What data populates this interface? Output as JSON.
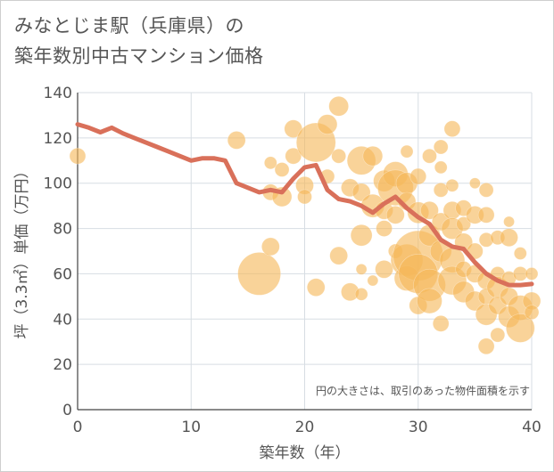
{
  "title_lines": [
    "みなとじま駅（兵庫県）の",
    "築年数別中古マンション価格"
  ],
  "chart_data": {
    "type": "scatter",
    "title": "みなとじま駅（兵庫県）の築年数別中古マンション価格",
    "xlabel": "築年数（年）",
    "ylabel": "坪（3.3㎡）単価（万円）",
    "xlim": [
      0,
      40
    ],
    "ylim": [
      0,
      140
    ],
    "x_ticks": [
      0,
      10,
      20,
      30,
      40
    ],
    "y_ticks": [
      0,
      20,
      40,
      60,
      80,
      100,
      120,
      140
    ],
    "grid": true,
    "note": "円の大きさは、取引のあった物件面積を示す",
    "colors": {
      "bubble": "#F5B85A",
      "line": "#D9705A",
      "grid": "#d7dde3",
      "text": "#555555"
    },
    "line": {
      "x": [
        0,
        1,
        2,
        3,
        4,
        5,
        6,
        7,
        8,
        9,
        10,
        11,
        12,
        13,
        14,
        15,
        16,
        17,
        18,
        19,
        20,
        21,
        22,
        23,
        24,
        25,
        26,
        27,
        28,
        29,
        30,
        31,
        32,
        33,
        34,
        35,
        36,
        37,
        38,
        39,
        40
      ],
      "y": [
        126,
        124.5,
        122.5,
        124.5,
        122,
        120,
        118,
        116,
        114,
        112,
        110,
        111,
        111,
        110,
        100,
        98,
        96,
        97,
        96,
        102,
        107,
        108,
        97,
        93,
        92,
        90,
        87,
        91,
        94,
        89,
        85,
        82,
        75,
        72,
        71,
        65,
        60,
        57,
        55,
        55,
        55.5
      ]
    },
    "points": [
      {
        "x": 0,
        "y": 112,
        "s": 9
      },
      {
        "x": 14,
        "y": 119,
        "s": 10
      },
      {
        "x": 16,
        "y": 60,
        "s": 24
      },
      {
        "x": 17,
        "y": 109,
        "s": 7
      },
      {
        "x": 17,
        "y": 96,
        "s": 9
      },
      {
        "x": 17,
        "y": 72,
        "s": 10
      },
      {
        "x": 18,
        "y": 106,
        "s": 8
      },
      {
        "x": 18,
        "y": 94,
        "s": 11
      },
      {
        "x": 19,
        "y": 124,
        "s": 10
      },
      {
        "x": 19,
        "y": 112,
        "s": 9
      },
      {
        "x": 20,
        "y": 99,
        "s": 10
      },
      {
        "x": 20,
        "y": 94,
        "s": 8
      },
      {
        "x": 21,
        "y": 118,
        "s": 22
      },
      {
        "x": 21,
        "y": 54,
        "s": 10
      },
      {
        "x": 22,
        "y": 126,
        "s": 11
      },
      {
        "x": 22,
        "y": 103,
        "s": 8
      },
      {
        "x": 23,
        "y": 134,
        "s": 11
      },
      {
        "x": 23,
        "y": 112,
        "s": 8
      },
      {
        "x": 23,
        "y": 68,
        "s": 10
      },
      {
        "x": 24,
        "y": 98,
        "s": 10
      },
      {
        "x": 24,
        "y": 52,
        "s": 10
      },
      {
        "x": 25,
        "y": 110,
        "s": 16
      },
      {
        "x": 25,
        "y": 96,
        "s": 10
      },
      {
        "x": 25,
        "y": 77,
        "s": 12
      },
      {
        "x": 25,
        "y": 62,
        "s": 6
      },
      {
        "x": 25,
        "y": 51,
        "s": 7
      },
      {
        "x": 26,
        "y": 112,
        "s": 11
      },
      {
        "x": 26,
        "y": 90,
        "s": 13
      },
      {
        "x": 26,
        "y": 57,
        "s": 6
      },
      {
        "x": 27,
        "y": 101,
        "s": 12
      },
      {
        "x": 27,
        "y": 88,
        "s": 10
      },
      {
        "x": 27,
        "y": 80,
        "s": 9
      },
      {
        "x": 27,
        "y": 62,
        "s": 10
      },
      {
        "x": 28,
        "y": 104,
        "s": 14
      },
      {
        "x": 28,
        "y": 98,
        "s": 20
      },
      {
        "x": 28,
        "y": 86,
        "s": 10
      },
      {
        "x": 28,
        "y": 70,
        "s": 8
      },
      {
        "x": 29,
        "y": 114,
        "s": 7
      },
      {
        "x": 29,
        "y": 100,
        "s": 12
      },
      {
        "x": 29,
        "y": 92,
        "s": 10
      },
      {
        "x": 29,
        "y": 66,
        "s": 18
      },
      {
        "x": 29,
        "y": 58,
        "s": 14
      },
      {
        "x": 30,
        "y": 103,
        "s": 9
      },
      {
        "x": 30,
        "y": 87,
        "s": 12
      },
      {
        "x": 30,
        "y": 68,
        "s": 28
      },
      {
        "x": 30,
        "y": 60,
        "s": 22
      },
      {
        "x": 30,
        "y": 46,
        "s": 10
      },
      {
        "x": 31,
        "y": 112,
        "s": 8
      },
      {
        "x": 31,
        "y": 88,
        "s": 10
      },
      {
        "x": 31,
        "y": 77,
        "s": 12
      },
      {
        "x": 31,
        "y": 55,
        "s": 18
      },
      {
        "x": 31,
        "y": 48,
        "s": 14
      },
      {
        "x": 32,
        "y": 116,
        "s": 8
      },
      {
        "x": 32,
        "y": 107,
        "s": 7
      },
      {
        "x": 32,
        "y": 97,
        "s": 8
      },
      {
        "x": 32,
        "y": 83,
        "s": 10
      },
      {
        "x": 32,
        "y": 70,
        "s": 12
      },
      {
        "x": 32,
        "y": 38,
        "s": 9
      },
      {
        "x": 33,
        "y": 124,
        "s": 9
      },
      {
        "x": 33,
        "y": 99,
        "s": 7
      },
      {
        "x": 33,
        "y": 88,
        "s": 10
      },
      {
        "x": 33,
        "y": 80,
        "s": 12
      },
      {
        "x": 33,
        "y": 66,
        "s": 14
      },
      {
        "x": 33,
        "y": 57,
        "s": 16
      },
      {
        "x": 34,
        "y": 89,
        "s": 9
      },
      {
        "x": 34,
        "y": 82,
        "s": 8
      },
      {
        "x": 34,
        "y": 74,
        "s": 10
      },
      {
        "x": 34,
        "y": 62,
        "s": 9
      },
      {
        "x": 34,
        "y": 52,
        "s": 12
      },
      {
        "x": 35,
        "y": 100,
        "s": 6
      },
      {
        "x": 35,
        "y": 86,
        "s": 10
      },
      {
        "x": 35,
        "y": 70,
        "s": 9
      },
      {
        "x": 35,
        "y": 60,
        "s": 10
      },
      {
        "x": 35,
        "y": 48,
        "s": 11
      },
      {
        "x": 36,
        "y": 97,
        "s": 8
      },
      {
        "x": 36,
        "y": 86,
        "s": 9
      },
      {
        "x": 36,
        "y": 75,
        "s": 8
      },
      {
        "x": 36,
        "y": 57,
        "s": 10
      },
      {
        "x": 36,
        "y": 50,
        "s": 9
      },
      {
        "x": 36,
        "y": 42,
        "s": 12
      },
      {
        "x": 36,
        "y": 28,
        "s": 9
      },
      {
        "x": 37,
        "y": 76,
        "s": 8
      },
      {
        "x": 37,
        "y": 60,
        "s": 8
      },
      {
        "x": 37,
        "y": 54,
        "s": 12
      },
      {
        "x": 37,
        "y": 46,
        "s": 10
      },
      {
        "x": 37,
        "y": 33,
        "s": 8
      },
      {
        "x": 38,
        "y": 83,
        "s": 6
      },
      {
        "x": 38,
        "y": 76,
        "s": 10
      },
      {
        "x": 38,
        "y": 58,
        "s": 8
      },
      {
        "x": 38,
        "y": 50,
        "s": 10
      },
      {
        "x": 38,
        "y": 41,
        "s": 12
      },
      {
        "x": 39,
        "y": 69,
        "s": 7
      },
      {
        "x": 39,
        "y": 60,
        "s": 8
      },
      {
        "x": 39,
        "y": 45,
        "s": 14
      },
      {
        "x": 39,
        "y": 36,
        "s": 16
      },
      {
        "x": 40,
        "y": 60,
        "s": 7
      },
      {
        "x": 40,
        "y": 48,
        "s": 10
      },
      {
        "x": 40,
        "y": 43,
        "s": 8
      }
    ]
  }
}
